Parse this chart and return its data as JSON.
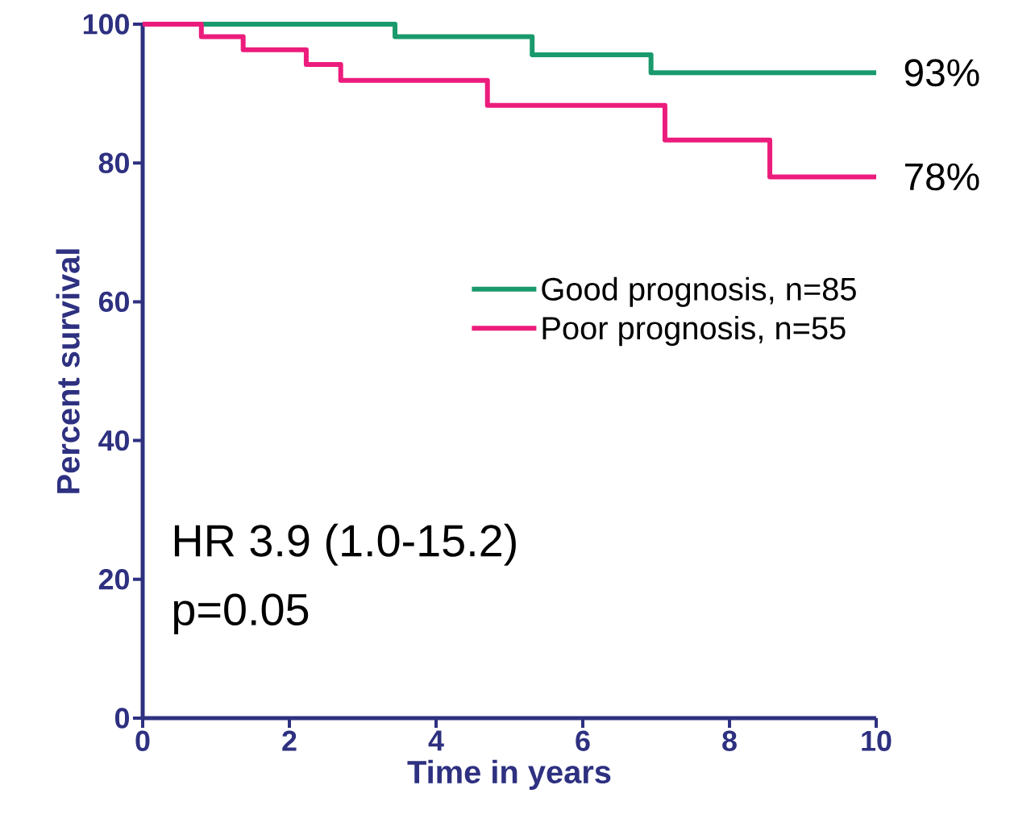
{
  "chart_data": {
    "type": "step",
    "xlabel": "Time in years",
    "ylabel": "Percent survival",
    "xlim": [
      0,
      10
    ],
    "ylim": [
      0,
      100
    ],
    "xticks": [
      0,
      2,
      4,
      6,
      8,
      10
    ],
    "yticks": [
      0,
      20,
      40,
      60,
      80,
      100
    ],
    "series": [
      {
        "name": "Good prognosis, n=85",
        "color": "#1a9a6c",
        "x": [
          0,
          3.44,
          5.31,
          6.93,
          10
        ],
        "values": [
          100,
          98.2,
          95.6,
          93,
          93
        ]
      },
      {
        "name": "Poor prognosis, n=55",
        "color": "#ec1c7c",
        "x": [
          0,
          0.8,
          1.37,
          2.23,
          2.7,
          4.7,
          7.12,
          8.55,
          10
        ],
        "values": [
          100,
          98.2,
          96.3,
          94.2,
          91.9,
          88.3,
          83.3,
          78,
          78
        ]
      }
    ],
    "legend": "right",
    "grid": false,
    "marker": "none",
    "line_style": "solid",
    "annotations": [
      {
        "text": "93%",
        "x": 10,
        "y": 93
      },
      {
        "text": "78%",
        "x": 10,
        "y": 78
      },
      "HR 3.9 (1.0-15.2)",
      "p=0.05"
    ]
  }
}
